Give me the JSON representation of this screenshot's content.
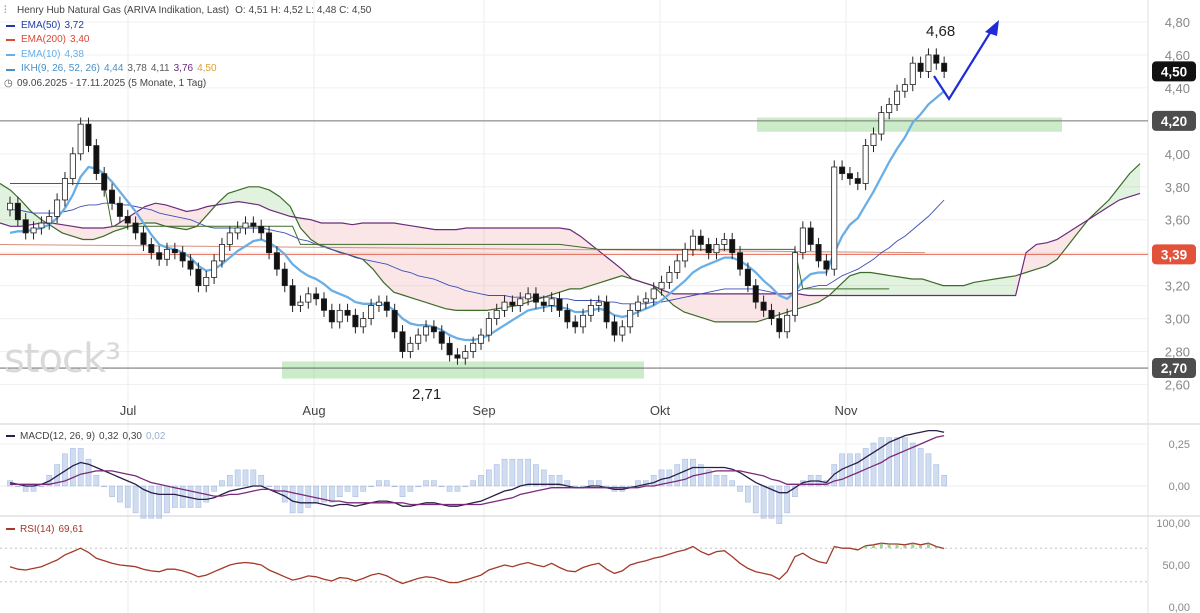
{
  "header": {
    "instrument": "Henry Hub Natural Gas (ARIVA Indikation, Last)",
    "ohlc": "O: 4,51   H: 4,52   L: 4,48   C: 4,50",
    "date_range": "09.06.2025 - 17.11.2025   (5 Monate, 1 Tag)"
  },
  "indicators": [
    {
      "label": "EMA(50)",
      "value": "3,72",
      "color": "#1f3ca6"
    },
    {
      "label": "EMA(200)",
      "value": "3,40",
      "color": "#d84a36"
    },
    {
      "label": "EMA(10)",
      "value": "4,38",
      "color": "#6aaee6"
    },
    {
      "label": "IKH(9, 26, 52, 26)",
      "values": [
        "4,44",
        "3,78",
        "4,11",
        "3,76",
        "4,50"
      ],
      "value_colors": [
        "#4a90c4",
        "#5a5a5a",
        "#5a5a5a",
        "#6b2a7b",
        "#e0a030"
      ]
    }
  ],
  "watermark": "stock³",
  "annotations": {
    "high_label": "4,68",
    "low_label": "2,71"
  },
  "price_badges": [
    {
      "label": "4,50",
      "value": 4.5,
      "bg": "#111111"
    },
    {
      "label": "4,20",
      "value": 4.2,
      "bg": "#4d4d4d"
    },
    {
      "label": "3,39",
      "value": 3.39,
      "bg": "#e2513a"
    },
    {
      "label": "2,70",
      "value": 2.7,
      "bg": "#4d4d4d"
    }
  ],
  "macd": {
    "label": "MACD(12, 26, 9)",
    "v1": "0,32",
    "v2": "0,30",
    "v3": "0,02",
    "ticks": [
      "0,25",
      "0,00"
    ]
  },
  "rsi": {
    "label": "RSI(14)",
    "value": "69,61",
    "ticks": [
      "100,00",
      "50,00",
      "0,00"
    ]
  },
  "chart_data": {
    "type": "candlestick",
    "start_date": "09.06.2025",
    "end_date": "17.11.2025",
    "x_labels": [
      "Jul",
      "Aug",
      "Sep",
      "Okt",
      "Nov"
    ],
    "y_ticks": [
      "4,80",
      "4,60",
      "4,40",
      "4,20",
      "4,00",
      "3,80",
      "3,60",
      "3,40",
      "3,20",
      "3,00",
      "2,80",
      "2,60"
    ],
    "y_tick_values": [
      4.8,
      4.6,
      4.4,
      4.2,
      4.0,
      3.8,
      3.6,
      3.4,
      3.2,
      3.0,
      2.8,
      2.6
    ],
    "ylim": [
      2.52,
      4.9
    ],
    "horizontal_lines": [
      4.2,
      3.39,
      2.7
    ],
    "support_zones": [
      {
        "from": 4.17,
        "to": 4.22
      },
      {
        "from": 2.66,
        "to": 2.74
      }
    ],
    "close": [
      3.7,
      3.6,
      3.52,
      3.55,
      3.58,
      3.62,
      3.72,
      3.85,
      4.0,
      4.18,
      4.05,
      3.88,
      3.78,
      3.7,
      3.62,
      3.58,
      3.52,
      3.45,
      3.4,
      3.36,
      3.42,
      3.4,
      3.35,
      3.3,
      3.2,
      3.25,
      3.35,
      3.45,
      3.52,
      3.55,
      3.58,
      3.56,
      3.52,
      3.4,
      3.3,
      3.2,
      3.08,
      3.1,
      3.15,
      3.12,
      3.05,
      2.98,
      3.05,
      3.02,
      2.95,
      3.0,
      3.08,
      3.1,
      3.05,
      2.92,
      2.8,
      2.85,
      2.9,
      2.95,
      2.92,
      2.85,
      2.78,
      2.76,
      2.8,
      2.85,
      2.9,
      3.0,
      3.05,
      3.1,
      3.08,
      3.12,
      3.15,
      3.1,
      3.08,
      3.12,
      3.05,
      2.98,
      2.95,
      3.02,
      3.08,
      3.1,
      2.98,
      2.9,
      2.95,
      3.05,
      3.1,
      3.12,
      3.18,
      3.22,
      3.28,
      3.35,
      3.42,
      3.5,
      3.45,
      3.4,
      3.45,
      3.48,
      3.4,
      3.3,
      3.2,
      3.1,
      3.05,
      3.0,
      2.92,
      3.02,
      3.4,
      3.55,
      3.45,
      3.35,
      3.3,
      3.92,
      3.88,
      3.85,
      3.82,
      4.05,
      4.12,
      4.25,
      4.3,
      4.38,
      4.42,
      4.55,
      4.5,
      4.6,
      4.55,
      4.5
    ],
    "ema10": [
      3.52,
      3.53,
      3.53,
      3.54,
      3.55,
      3.57,
      3.61,
      3.67,
      3.75,
      3.86,
      3.92,
      3.91,
      3.88,
      3.83,
      3.77,
      3.71,
      3.65,
      3.58,
      3.51,
      3.45,
      3.43,
      3.42,
      3.4,
      3.37,
      3.32,
      3.29,
      3.3,
      3.33,
      3.37,
      3.41,
      3.44,
      3.47,
      3.48,
      3.46,
      3.43,
      3.39,
      3.33,
      3.29,
      3.26,
      3.24,
      3.21,
      3.17,
      3.15,
      3.13,
      3.1,
      3.09,
      3.09,
      3.09,
      3.08,
      3.05,
      3.0,
      2.97,
      2.96,
      2.96,
      2.95,
      2.93,
      2.9,
      2.88,
      2.87,
      2.87,
      2.88,
      2.9,
      2.93,
      2.96,
      2.99,
      3.02,
      3.05,
      3.06,
      3.07,
      3.08,
      3.07,
      3.06,
      3.04,
      3.04,
      3.05,
      3.06,
      3.05,
      3.02,
      3.01,
      3.02,
      3.04,
      3.06,
      3.08,
      3.11,
      3.15,
      3.19,
      3.23,
      3.28,
      3.31,
      3.33,
      3.35,
      3.37,
      3.37,
      3.35,
      3.32,
      3.28,
      3.23,
      3.19,
      3.14,
      3.12,
      3.16,
      3.23,
      3.27,
      3.28,
      3.28,
      3.4,
      3.5,
      3.57,
      3.61,
      3.69,
      3.77,
      3.86,
      3.95,
      4.03,
      4.1,
      4.19,
      4.24,
      4.3,
      4.34,
      4.38
    ],
    "ema50": [
      3.66,
      3.66,
      3.65,
      3.64,
      3.64,
      3.64,
      3.64,
      3.65,
      3.66,
      3.68,
      3.69,
      3.69,
      3.7,
      3.7,
      3.69,
      3.69,
      3.68,
      3.67,
      3.66,
      3.64,
      3.63,
      3.62,
      3.61,
      3.6,
      3.58,
      3.56,
      3.55,
      3.55,
      3.55,
      3.55,
      3.55,
      3.55,
      3.55,
      3.54,
      3.53,
      3.52,
      3.5,
      3.48,
      3.47,
      3.45,
      3.44,
      3.42,
      3.4,
      3.39,
      3.37,
      3.36,
      3.35,
      3.34,
      3.33,
      3.31,
      3.29,
      3.28,
      3.26,
      3.25,
      3.24,
      3.22,
      3.2,
      3.19,
      3.17,
      3.16,
      3.15,
      3.14,
      3.14,
      3.14,
      3.13,
      3.13,
      3.13,
      3.13,
      3.13,
      3.13,
      3.12,
      3.12,
      3.11,
      3.11,
      3.11,
      3.11,
      3.1,
      3.1,
      3.09,
      3.09,
      3.09,
      3.09,
      3.1,
      3.1,
      3.11,
      3.12,
      3.13,
      3.14,
      3.15,
      3.16,
      3.17,
      3.18,
      3.18,
      3.18,
      3.18,
      3.18,
      3.17,
      3.16,
      3.15,
      3.15,
      3.16,
      3.18,
      3.19,
      3.2,
      3.2,
      3.23,
      3.26,
      3.28,
      3.3,
      3.33,
      3.36,
      3.4,
      3.43,
      3.47,
      3.5,
      3.54,
      3.58,
      3.62,
      3.67,
      3.72
    ],
    "ema200_range": [
      3.45,
      3.4
    ],
    "ikh_kijun_steps": [
      [
        0,
        3.82
      ],
      [
        12,
        3.82
      ],
      [
        13,
        3.56
      ],
      [
        36,
        3.56
      ],
      [
        37,
        3.45
      ],
      [
        70,
        3.45
      ],
      [
        75,
        3.42
      ],
      [
        100,
        3.42
      ],
      [
        101,
        3.18
      ],
      [
        112,
        3.18
      ]
    ],
    "ikh_cloud_span_a": [
      3.82,
      3.78,
      3.72,
      3.65,
      3.6,
      3.56,
      3.52,
      3.5,
      3.48,
      3.48,
      3.5,
      3.53,
      3.55,
      3.57,
      3.58,
      3.58,
      3.56,
      3.55,
      3.54,
      3.56,
      3.63,
      3.7,
      3.76,
      3.78,
      3.8,
      3.8,
      3.78,
      3.74,
      3.68,
      3.55,
      3.48,
      3.44,
      3.42,
      3.4,
      3.38,
      3.36,
      3.3,
      3.22,
      3.16,
      3.14,
      3.12,
      3.1,
      3.08,
      3.06,
      3.05,
      3.05,
      3.05,
      3.05,
      3.06,
      3.07,
      3.08,
      3.1,
      3.12,
      3.14,
      3.16,
      3.18,
      3.18,
      3.2,
      3.22,
      3.24,
      3.26,
      3.24,
      3.22,
      3.2,
      3.14,
      3.08,
      3.04,
      3.02,
      3.0,
      2.98,
      2.98,
      2.98,
      2.98,
      2.98,
      3.0,
      3.02,
      3.04,
      3.06,
      3.08,
      3.1,
      3.14,
      3.2,
      3.26,
      3.28,
      3.28,
      3.27,
      3.26,
      3.25,
      3.24,
      3.24,
      3.22,
      3.2,
      3.2,
      3.2,
      3.22,
      3.23,
      3.24,
      3.25,
      3.26,
      3.28,
      3.3,
      3.32,
      3.36,
      3.44,
      3.52,
      3.6,
      3.66,
      3.72,
      3.8,
      3.88,
      3.94
    ],
    "ikh_cloud_span_b": [
      3.58,
      3.56,
      3.56,
      3.57,
      3.58,
      3.58,
      3.57,
      3.56,
      3.55,
      3.55,
      3.55,
      3.56,
      3.6,
      3.64,
      3.68,
      3.7,
      3.69,
      3.67,
      3.65,
      3.66,
      3.68,
      3.69,
      3.7,
      3.71,
      3.7,
      3.69,
      3.66,
      3.64,
      3.62,
      3.61,
      3.6,
      3.58,
      3.58,
      3.58,
      3.57,
      3.58,
      3.58,
      3.58,
      3.58,
      3.57,
      3.56,
      3.55,
      3.54,
      3.54,
      3.54,
      3.55,
      3.55,
      3.55,
      3.55,
      3.55,
      3.55,
      3.55,
      3.55,
      3.55,
      3.55,
      3.54,
      3.5,
      3.45,
      3.4,
      3.35,
      3.3,
      3.24,
      3.22,
      3.2,
      3.17,
      3.15,
      3.15,
      3.15,
      3.15,
      3.15,
      3.15,
      3.15,
      3.15,
      3.15,
      3.15,
      3.15,
      3.15,
      3.15,
      3.14,
      3.14,
      3.14,
      3.14,
      3.14,
      3.14,
      3.14,
      3.14,
      3.14,
      3.14,
      3.14,
      3.14,
      3.14,
      3.14,
      3.14,
      3.14,
      3.14,
      3.14,
      3.14,
      3.14,
      3.14,
      3.4,
      3.45,
      3.46,
      3.48,
      3.52,
      3.56,
      3.6,
      3.64,
      3.68,
      3.72,
      3.74,
      3.76
    ],
    "macd_line": [
      0.02,
      0.01,
      0.0,
      0.0,
      0.01,
      0.03,
      0.06,
      0.09,
      0.12,
      0.14,
      0.13,
      0.11,
      0.09,
      0.07,
      0.05,
      0.03,
      0.01,
      -0.02,
      -0.04,
      -0.05,
      -0.05,
      -0.05,
      -0.06,
      -0.07,
      -0.08,
      -0.08,
      -0.07,
      -0.05,
      -0.03,
      -0.02,
      -0.01,
      0.0,
      0.0,
      -0.02,
      -0.04,
      -0.06,
      -0.09,
      -0.1,
      -0.1,
      -0.1,
      -0.11,
      -0.12,
      -0.11,
      -0.11,
      -0.12,
      -0.11,
      -0.1,
      -0.09,
      -0.09,
      -0.1,
      -0.12,
      -0.12,
      -0.11,
      -0.1,
      -0.1,
      -0.11,
      -0.12,
      -0.12,
      -0.11,
      -0.1,
      -0.09,
      -0.07,
      -0.05,
      -0.03,
      -0.02,
      0.0,
      0.01,
      0.01,
      0.01,
      0.01,
      0.01,
      0.0,
      -0.01,
      -0.01,
      0.0,
      0.0,
      -0.01,
      -0.02,
      -0.02,
      -0.01,
      0.0,
      0.01,
      0.02,
      0.04,
      0.05,
      0.07,
      0.09,
      0.11,
      0.11,
      0.11,
      0.11,
      0.11,
      0.1,
      0.08,
      0.05,
      0.02,
      0.0,
      -0.02,
      -0.04,
      -0.04,
      -0.01,
      0.02,
      0.03,
      0.03,
      0.02,
      0.07,
      0.1,
      0.12,
      0.14,
      0.17,
      0.2,
      0.23,
      0.26,
      0.28,
      0.3,
      0.31,
      0.32,
      0.33,
      0.33,
      0.32
    ],
    "macd_signal": [
      0.01,
      0.01,
      0.01,
      0.01,
      0.01,
      0.01,
      0.02,
      0.03,
      0.05,
      0.07,
      0.08,
      0.09,
      0.09,
      0.09,
      0.08,
      0.07,
      0.06,
      0.04,
      0.02,
      0.01,
      0.0,
      -0.01,
      -0.02,
      -0.03,
      -0.04,
      -0.05,
      -0.06,
      -0.06,
      -0.05,
      -0.05,
      -0.04,
      -0.03,
      -0.02,
      -0.02,
      -0.03,
      -0.03,
      -0.04,
      -0.05,
      -0.06,
      -0.07,
      -0.08,
      -0.09,
      -0.09,
      -0.1,
      -0.1,
      -0.1,
      -0.1,
      -0.1,
      -0.1,
      -0.1,
      -0.1,
      -0.11,
      -0.11,
      -0.11,
      -0.11,
      -0.11,
      -0.11,
      -0.11,
      -0.11,
      -0.11,
      -0.11,
      -0.1,
      -0.09,
      -0.08,
      -0.07,
      -0.05,
      -0.04,
      -0.03,
      -0.02,
      -0.01,
      -0.01,
      -0.01,
      -0.01,
      -0.01,
      -0.01,
      -0.01,
      -0.01,
      -0.01,
      -0.01,
      -0.01,
      -0.01,
      0.0,
      0.0,
      0.01,
      0.02,
      0.03,
      0.04,
      0.06,
      0.07,
      0.08,
      0.09,
      0.09,
      0.09,
      0.09,
      0.08,
      0.07,
      0.06,
      0.04,
      0.03,
      0.01,
      0.01,
      0.01,
      0.01,
      0.01,
      0.01,
      0.03,
      0.04,
      0.06,
      0.08,
      0.1,
      0.12,
      0.14,
      0.17,
      0.19,
      0.21,
      0.23,
      0.25,
      0.27,
      0.29,
      0.3
    ],
    "rsi_values": [
      48,
      45,
      44,
      46,
      48,
      52,
      56,
      62,
      66,
      70,
      65,
      58,
      55,
      52,
      50,
      49,
      48,
      45,
      43,
      42,
      45,
      45,
      43,
      40,
      36,
      38,
      42,
      46,
      50,
      52,
      53,
      52,
      50,
      44,
      40,
      36,
      32,
      34,
      37,
      36,
      33,
      31,
      35,
      34,
      31,
      34,
      38,
      40,
      37,
      32,
      28,
      31,
      34,
      36,
      35,
      32,
      29,
      29,
      32,
      35,
      38,
      44,
      47,
      50,
      48,
      51,
      53,
      50,
      48,
      52,
      47,
      43,
      42,
      47,
      50,
      52,
      45,
      40,
      43,
      50,
      53,
      55,
      58,
      60,
      63,
      66,
      68,
      72,
      66,
      62,
      66,
      67,
      60,
      52,
      46,
      42,
      40,
      38,
      33,
      42,
      60,
      64,
      58,
      54,
      52,
      72,
      70,
      70,
      68,
      73,
      74,
      76,
      75,
      75,
      74,
      76,
      74,
      76,
      72,
      69.6
    ],
    "rsi_ylim": [
      0,
      100
    ],
    "rsi_levels": [
      70,
      30
    ]
  }
}
